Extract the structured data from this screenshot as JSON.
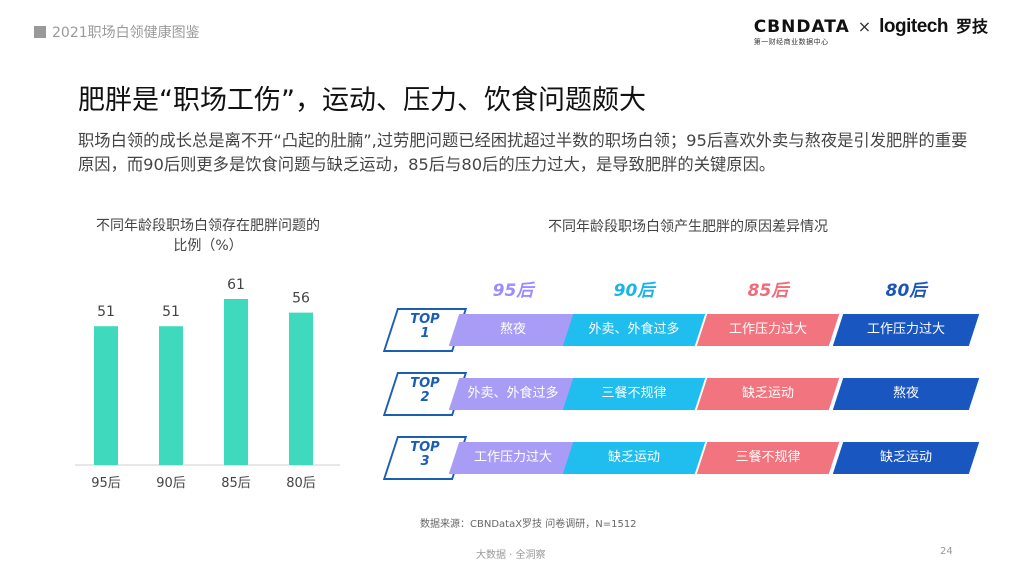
{
  "header": {
    "title": "2021职场白领健康图鉴"
  },
  "logos": {
    "cbn_main": "CBNDATA",
    "cbn_sub": "第一财经商业数据中心",
    "times": "×",
    "logitech": "logitech",
    "luoji": "罗技"
  },
  "title": "肥胖是“职场工伤”，运动、压力、饮食问题颇大",
  "description": "职场白领的成长总是离不开“凸起的肚腩”,过劳肥问题已经困扰超过半数的职场白领；95后喜欢外卖与熬夜是引发肥胖的重要原因，而90后则更多是饮食问题与缺乏运动，85后与80后的压力过大，是导致肥胖的关键原因。",
  "chart_data": [
    {
      "type": "bar",
      "title": "不同年龄段职场白领存在肥胖问题的比例（%）",
      "categories": [
        "95后",
        "90后",
        "85后",
        "80后"
      ],
      "values": [
        51,
        51,
        61,
        56
      ],
      "ylim": [
        0,
        61
      ],
      "color": "#3fd9bd"
    },
    {
      "type": "table",
      "title": "不同年龄段职场白领产生肥胖的原因差异情况",
      "generations": [
        {
          "label": "95后",
          "color": "#9b8cff",
          "cell_color": "#a99cf7"
        },
        {
          "label": "90后",
          "color": "#1ab4ea",
          "cell_color": "#20bdef"
        },
        {
          "label": "85后",
          "color": "#ee6b78",
          "cell_color": "#f2747f"
        },
        {
          "label": "80后",
          "color": "#1a56b8",
          "cell_color": "#1a56c0"
        }
      ],
      "rows": [
        {
          "top": "TOP",
          "rank": "1",
          "cells": [
            "熬夜",
            "外卖、外食过多",
            "工作压力过大",
            "工作压力过大"
          ]
        },
        {
          "top": "TOP",
          "rank": "2",
          "cells": [
            "外卖、外食过多",
            "三餐不规律",
            "缺乏运动",
            "熬夜"
          ]
        },
        {
          "top": "TOP",
          "rank": "3",
          "cells": [
            "工作压力过大",
            "缺乏运动",
            "三餐不规律",
            "缺乏运动"
          ]
        }
      ]
    }
  ],
  "source": "数据来源：CBNDataX罗技 问卷调研，N=1512",
  "footer": "大数据 · 全洞察",
  "page_number": "24"
}
